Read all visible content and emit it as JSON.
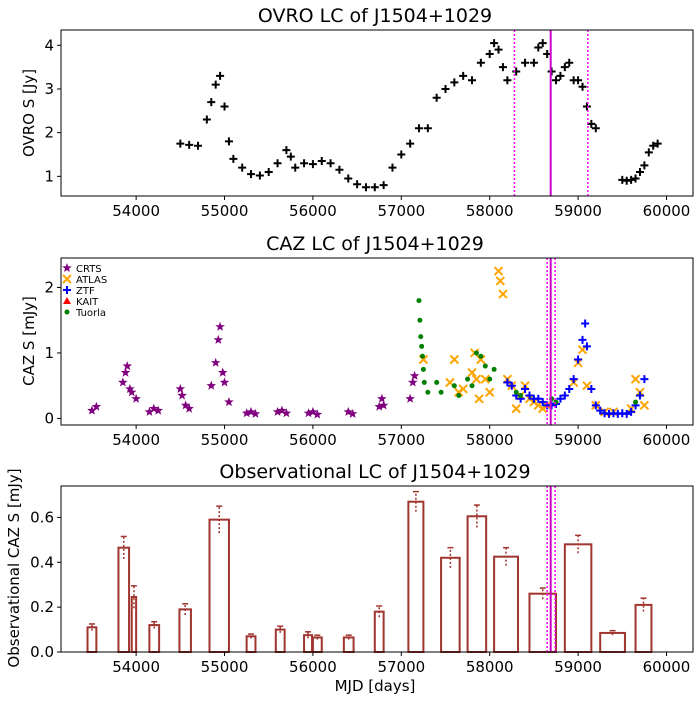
{
  "chart_data": [
    {
      "type": "scatter",
      "title": "OVRO LC of J1504+1029",
      "xlabel": "",
      "ylabel": "OVRO S [Jy]",
      "xlim": [
        53150,
        60300
      ],
      "ylim": [
        0.55,
        4.35
      ],
      "xticks": [
        "54000",
        "55000",
        "56000",
        "57000",
        "58000",
        "59000",
        "60000"
      ],
      "yticks": [
        "1",
        "2",
        "3",
        "4"
      ],
      "vlines_dotted": [
        58280,
        59110
      ],
      "vline_solid": 58690,
      "series": [
        {
          "name": "OVRO",
          "color": "#000000",
          "marker": "+",
          "x": [
            54500,
            54600,
            54700,
            54800,
            54850,
            54900,
            54950,
            55000,
            55050,
            55100,
            55200,
            55300,
            55400,
            55500,
            55600,
            55700,
            55750,
            55800,
            55900,
            56000,
            56100,
            56200,
            56300,
            56400,
            56500,
            56600,
            56700,
            56800,
            56900,
            57000,
            57100,
            57200,
            57300,
            57400,
            57500,
            57600,
            57700,
            57800,
            57900,
            58000,
            58050,
            58100,
            58150,
            58200,
            58300,
            58400,
            58500,
            58550,
            58600,
            58650,
            58700,
            58750,
            58800,
            58850,
            58900,
            58950,
            59000,
            59050,
            59100,
            59150,
            59200,
            59500,
            59550,
            59600,
            59650,
            59700,
            59750,
            59800,
            59850,
            59900
          ],
          "y": [
            1.75,
            1.72,
            1.7,
            2.3,
            2.7,
            3.1,
            3.3,
            2.6,
            1.8,
            1.4,
            1.2,
            1.05,
            1.02,
            1.1,
            1.3,
            1.6,
            1.45,
            1.2,
            1.3,
            1.28,
            1.35,
            1.3,
            1.15,
            0.95,
            0.82,
            0.75,
            0.75,
            0.8,
            1.2,
            1.5,
            1.75,
            2.1,
            2.1,
            2.8,
            3.0,
            3.15,
            3.3,
            3.2,
            3.6,
            3.8,
            4.05,
            3.9,
            3.5,
            3.2,
            3.4,
            3.6,
            3.6,
            3.95,
            4.05,
            3.8,
            3.4,
            3.2,
            3.3,
            3.5,
            3.6,
            3.2,
            3.2,
            3.05,
            2.6,
            2.2,
            2.1,
            0.92,
            0.9,
            0.92,
            0.95,
            1.1,
            1.25,
            1.55,
            1.7,
            1.75
          ]
        }
      ]
    },
    {
      "type": "scatter",
      "title": "CAZ LC of J1504+1029",
      "xlabel": "",
      "ylabel": "CAZ S [mJy]",
      "xlim": [
        53150,
        60300
      ],
      "ylim": [
        -0.1,
        2.45
      ],
      "xticks": [
        "54000",
        "55000",
        "56000",
        "57000",
        "58000",
        "59000",
        "60000"
      ],
      "yticks": [
        "0",
        "1",
        "2"
      ],
      "vlines_dotted": [
        58650,
        58740
      ],
      "vline_solid": 58690,
      "legend_position": "upper-left",
      "series": [
        {
          "name": "CRTS",
          "color": "#800080",
          "marker": "star",
          "x": [
            53500,
            53550,
            53850,
            53880,
            53900,
            53930,
            53950,
            54000,
            54150,
            54200,
            54250,
            54500,
            54520,
            54560,
            54600,
            54850,
            54900,
            54930,
            54950,
            54980,
            55000,
            55050,
            55250,
            55300,
            55350,
            55600,
            55650,
            55700,
            55950,
            56000,
            56050,
            56400,
            56450,
            56750,
            56780,
            56800,
            57100,
            57130,
            57150
          ],
          "y": [
            0.12,
            0.18,
            0.55,
            0.7,
            0.8,
            0.45,
            0.4,
            0.3,
            0.1,
            0.15,
            0.12,
            0.45,
            0.35,
            0.2,
            0.15,
            0.5,
            0.85,
            1.2,
            1.4,
            0.7,
            0.55,
            0.25,
            0.08,
            0.1,
            0.07,
            0.1,
            0.12,
            0.08,
            0.08,
            0.1,
            0.06,
            0.1,
            0.07,
            0.18,
            0.3,
            0.2,
            0.3,
            0.55,
            0.65
          ]
        },
        {
          "name": "ATLAS",
          "color": "#FFA500",
          "marker": "x",
          "x": [
            57250,
            57550,
            57600,
            57650,
            57700,
            57800,
            57830,
            57850,
            57880,
            57900,
            57950,
            58000,
            58100,
            58120,
            58150,
            58200,
            58250,
            58300,
            58350,
            58400,
            58450,
            58500,
            58550,
            58600,
            58650,
            58950,
            59000,
            59050,
            59100,
            59200,
            59300,
            59400,
            59600,
            59650,
            59700,
            59750
          ],
          "y": [
            0.9,
            0.55,
            0.9,
            0.4,
            0.45,
            0.7,
            1.0,
            0.6,
            0.3,
            0.9,
            0.6,
            0.4,
            2.25,
            2.1,
            1.9,
            0.6,
            0.5,
            0.15,
            0.35,
            0.5,
            0.3,
            0.25,
            0.2,
            0.15,
            0.2,
            0.55,
            0.85,
            1.05,
            0.5,
            0.2,
            0.1,
            0.1,
            0.15,
            0.6,
            0.4,
            0.2
          ]
        },
        {
          "name": "ZTF",
          "color": "#0000FF",
          "marker": "+",
          "x": [
            58200,
            58250,
            58300,
            58350,
            58400,
            58450,
            58500,
            58550,
            58600,
            58650,
            58700,
            58750,
            58800,
            58850,
            58900,
            58950,
            59000,
            59050,
            59080,
            59100,
            59150,
            59200,
            59250,
            59300,
            59350,
            59400,
            59450,
            59500,
            59550,
            59600,
            59650,
            59700,
            59750
          ],
          "y": [
            0.55,
            0.5,
            0.35,
            0.3,
            0.45,
            0.35,
            0.3,
            0.3,
            0.25,
            0.2,
            0.2,
            0.22,
            0.3,
            0.35,
            0.45,
            0.6,
            0.9,
            1.2,
            1.45,
            1.1,
            0.45,
            0.2,
            0.12,
            0.08,
            0.07,
            0.08,
            0.07,
            0.08,
            0.07,
            0.1,
            0.2,
            0.35,
            0.6
          ]
        },
        {
          "name": "KAIT",
          "color": "#FF0000",
          "marker": "triangle",
          "x": [],
          "y": []
        },
        {
          "name": "Tuorla",
          "color": "#008000",
          "marker": "circle",
          "x": [
            57200,
            57210,
            57220,
            57230,
            57240,
            57250,
            57260,
            57300,
            57400,
            57450,
            57600,
            57650,
            57750,
            57800,
            57850,
            57900,
            57950,
            58000,
            58050,
            58300,
            58350,
            58700,
            58750,
            59650
          ],
          "y": [
            1.8,
            1.5,
            1.25,
            1.1,
            0.95,
            0.75,
            0.55,
            0.4,
            0.55,
            0.4,
            0.5,
            0.35,
            0.6,
            0.5,
            1.0,
            0.95,
            0.8,
            0.6,
            0.75,
            0.4,
            0.35,
            0.3,
            0.25,
            0.25
          ]
        }
      ]
    },
    {
      "type": "bar",
      "title": "Observational LC of J1504+1029",
      "xlabel": "MJD [days]",
      "ylabel": "Observational CAZ S [mJy]",
      "xlim": [
        53150,
        60300
      ],
      "ylim": [
        0,
        0.74
      ],
      "xticks": [
        "54000",
        "55000",
        "56000",
        "57000",
        "58000",
        "59000",
        "60000"
      ],
      "yticks": [
        "0.0",
        "0.2",
        "0.4",
        "0.6"
      ],
      "vlines_dotted": [
        58650,
        58740
      ],
      "vline_solid": 58690,
      "bar_color": "#A0342E",
      "bars": [
        {
          "start": 53450,
          "end": 53550,
          "value": 0.11,
          "err": 0.015
        },
        {
          "start": 53800,
          "end": 53920,
          "value": 0.465,
          "err": 0.05
        },
        {
          "start": 53950,
          "end": 54000,
          "value": 0.245,
          "err": 0.05
        },
        {
          "start": 54150,
          "end": 54260,
          "value": 0.12,
          "err": 0.015
        },
        {
          "start": 54490,
          "end": 54620,
          "value": 0.19,
          "err": 0.025
        },
        {
          "start": 54830,
          "end": 55050,
          "value": 0.59,
          "err": 0.06
        },
        {
          "start": 55250,
          "end": 55350,
          "value": 0.07,
          "err": 0.01
        },
        {
          "start": 55580,
          "end": 55680,
          "value": 0.1,
          "err": 0.015
        },
        {
          "start": 55900,
          "end": 55990,
          "value": 0.075,
          "err": 0.015
        },
        {
          "start": 56000,
          "end": 56100,
          "value": 0.065,
          "err": 0.01
        },
        {
          "start": 56350,
          "end": 56460,
          "value": 0.065,
          "err": 0.01
        },
        {
          "start": 56700,
          "end": 56800,
          "value": 0.18,
          "err": 0.025
        },
        {
          "start": 57080,
          "end": 57250,
          "value": 0.67,
          "err": 0.045
        },
        {
          "start": 57450,
          "end": 57660,
          "value": 0.42,
          "err": 0.045
        },
        {
          "start": 57750,
          "end": 57960,
          "value": 0.605,
          "err": 0.05
        },
        {
          "start": 58050,
          "end": 58320,
          "value": 0.425,
          "err": 0.04
        },
        {
          "start": 58450,
          "end": 58750,
          "value": 0.26,
          "err": 0.025
        },
        {
          "start": 58850,
          "end": 59150,
          "value": 0.48,
          "err": 0.04
        },
        {
          "start": 59250,
          "end": 59530,
          "value": 0.085,
          "err": 0.01
        },
        {
          "start": 59650,
          "end": 59830,
          "value": 0.21,
          "err": 0.03
        }
      ]
    }
  ]
}
